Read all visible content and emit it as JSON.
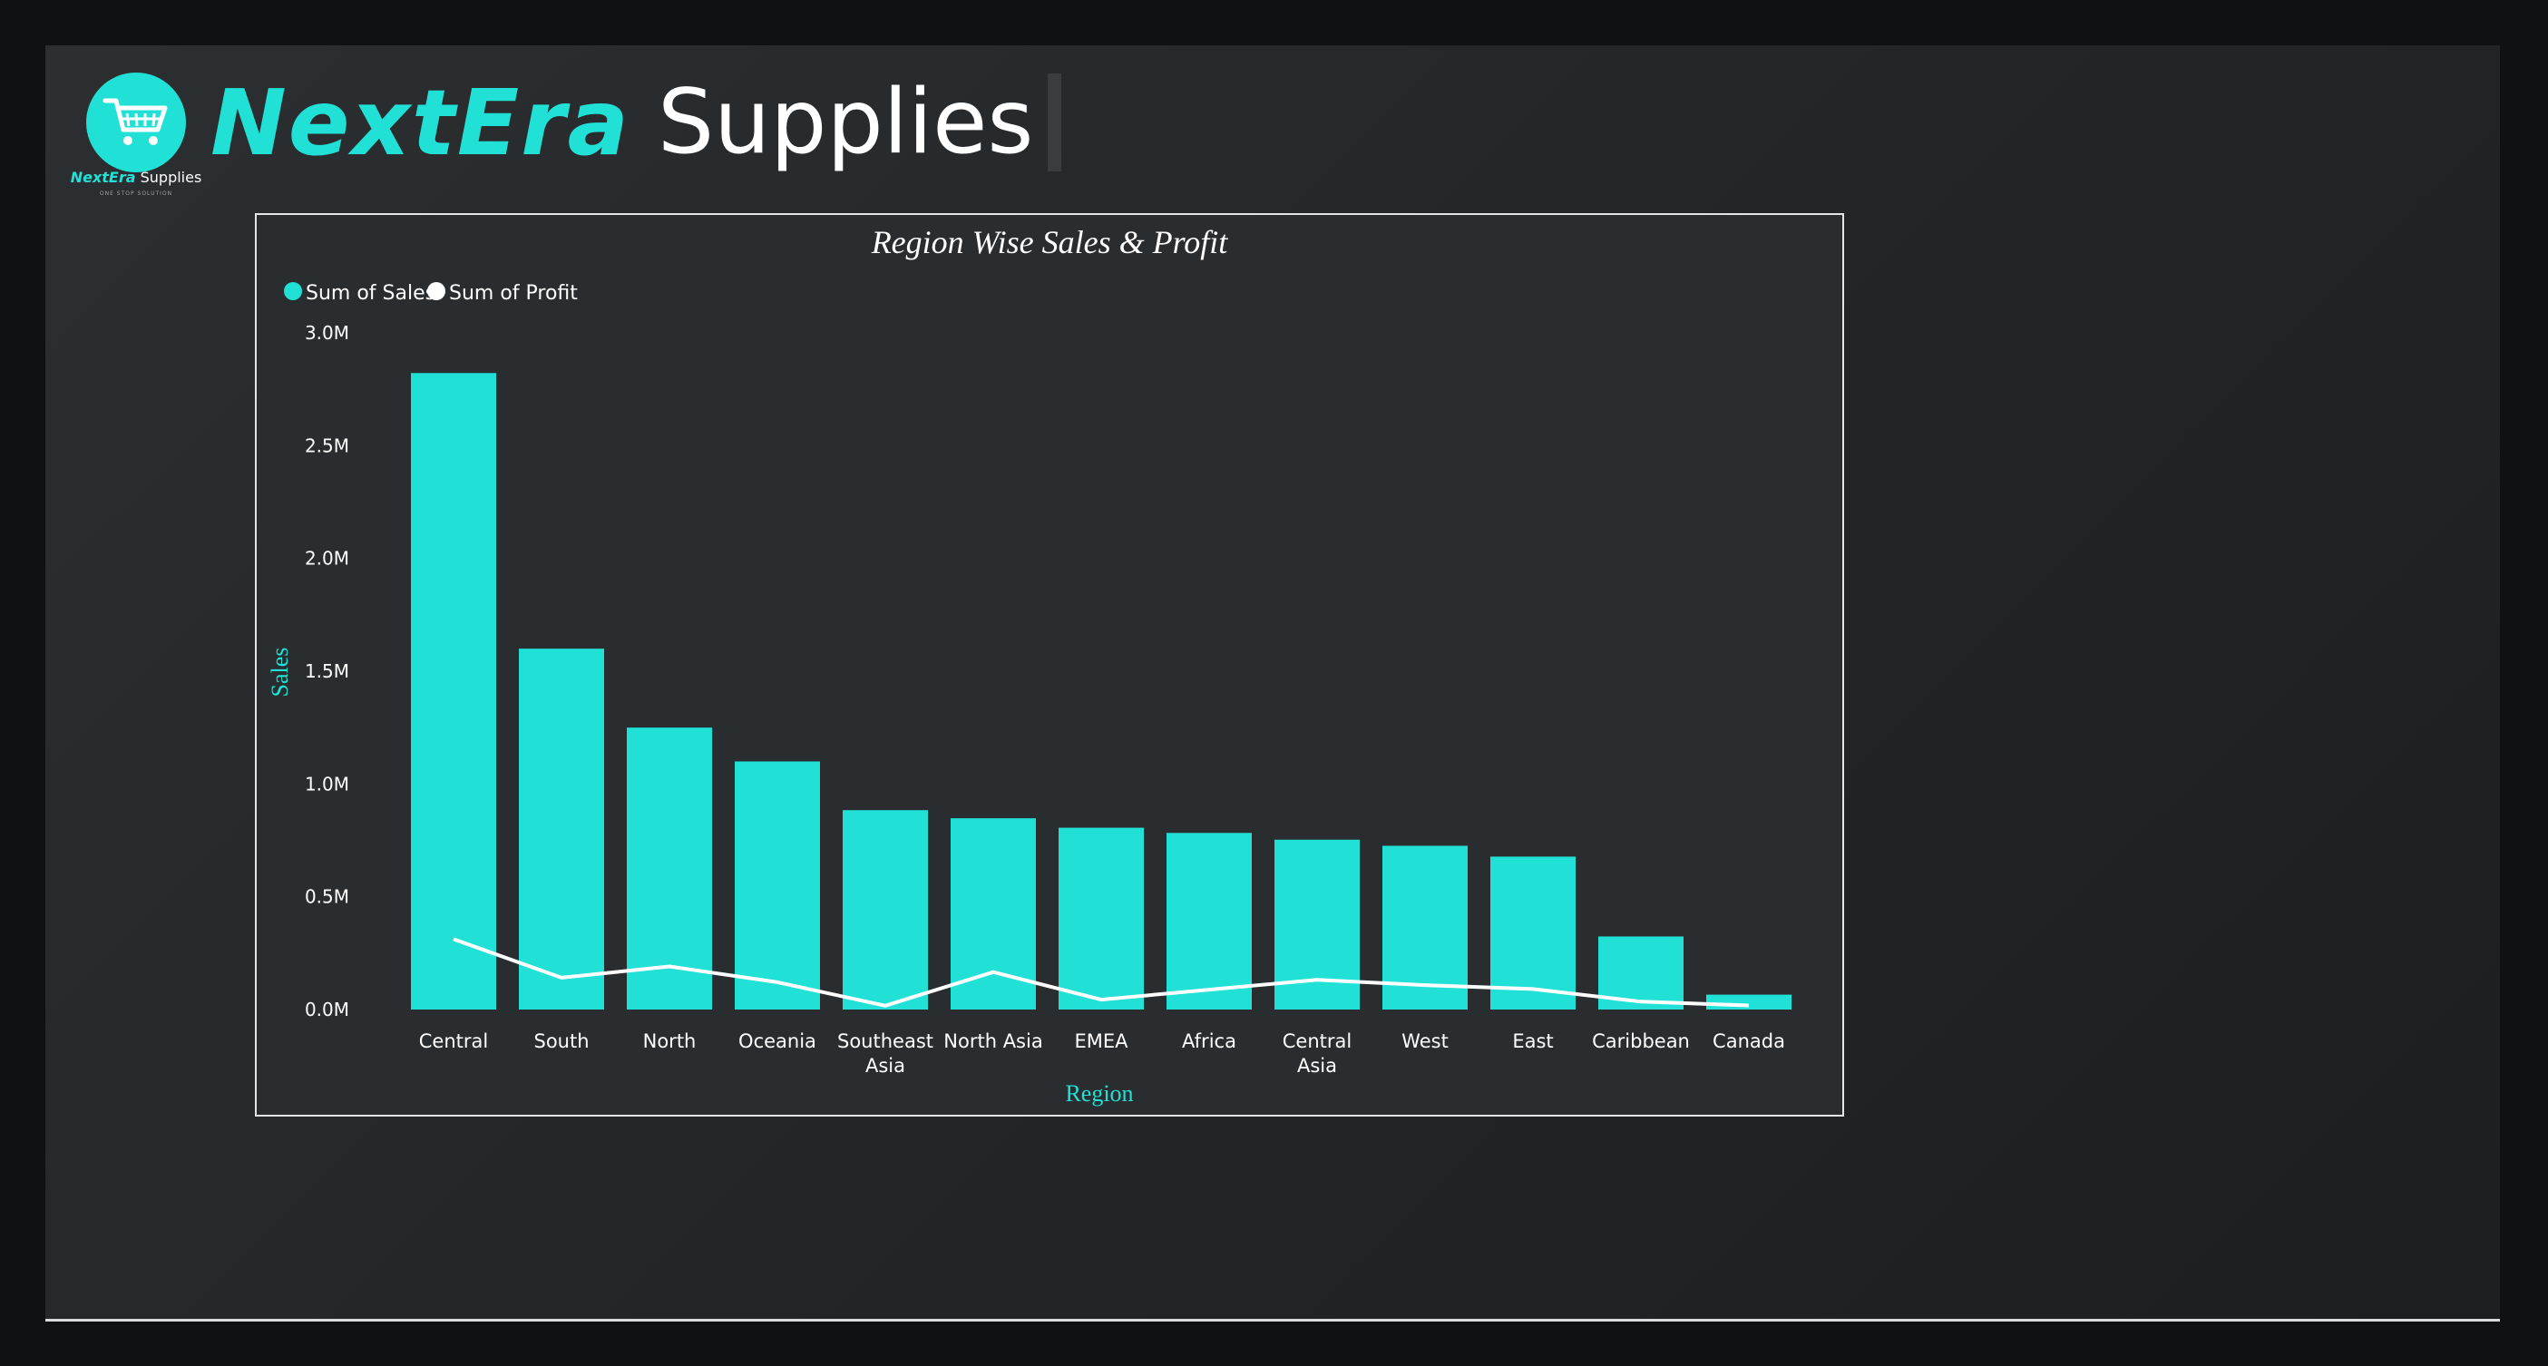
{
  "brand": {
    "accent": "NextEra",
    "main": "Supplies",
    "logo_accent": "NextEra",
    "logo_main": " Supplies",
    "logo_tagline": "ONE STOP SOLUTION",
    "logo_icon": "shopping-cart-icon"
  },
  "colors": {
    "accent": "#21e1d7",
    "profit_line": "#ffffff",
    "background": "#101112",
    "panel": "#2a2d2f"
  },
  "chart_data": {
    "type": "bar",
    "title": "Region Wise Sales & Profit",
    "xlabel": "Region",
    "ylabel": "Sales",
    "categories": [
      "Central",
      "South",
      "North",
      "Oceania",
      "Southeast Asia",
      "North Asia",
      "EMEA",
      "Africa",
      "Central Asia",
      "West",
      "East",
      "Caribbean",
      "Canada"
    ],
    "series": [
      {
        "name": "Sum of Sales",
        "type": "bar",
        "color": "#21e1d7",
        "values": [
          2822000,
          1600000,
          1250000,
          1100000,
          884000,
          848000,
          806000,
          783000,
          753000,
          726000,
          678000,
          324000,
          66000
        ]
      },
      {
        "name": "Sum of Profit",
        "type": "line",
        "color": "#ffffff",
        "values": [
          312000,
          141000,
          191000,
          121000,
          17000,
          166000,
          44000,
          88000,
          132000,
          108000,
          91000,
          35000,
          18000
        ]
      }
    ],
    "y_ticks": [
      "0.0M",
      "0.5M",
      "1.0M",
      "1.5M",
      "2.0M",
      "2.5M",
      "3.0M"
    ],
    "ylim": [
      0,
      3000000
    ],
    "legend_position": "top-left",
    "grid": false
  }
}
